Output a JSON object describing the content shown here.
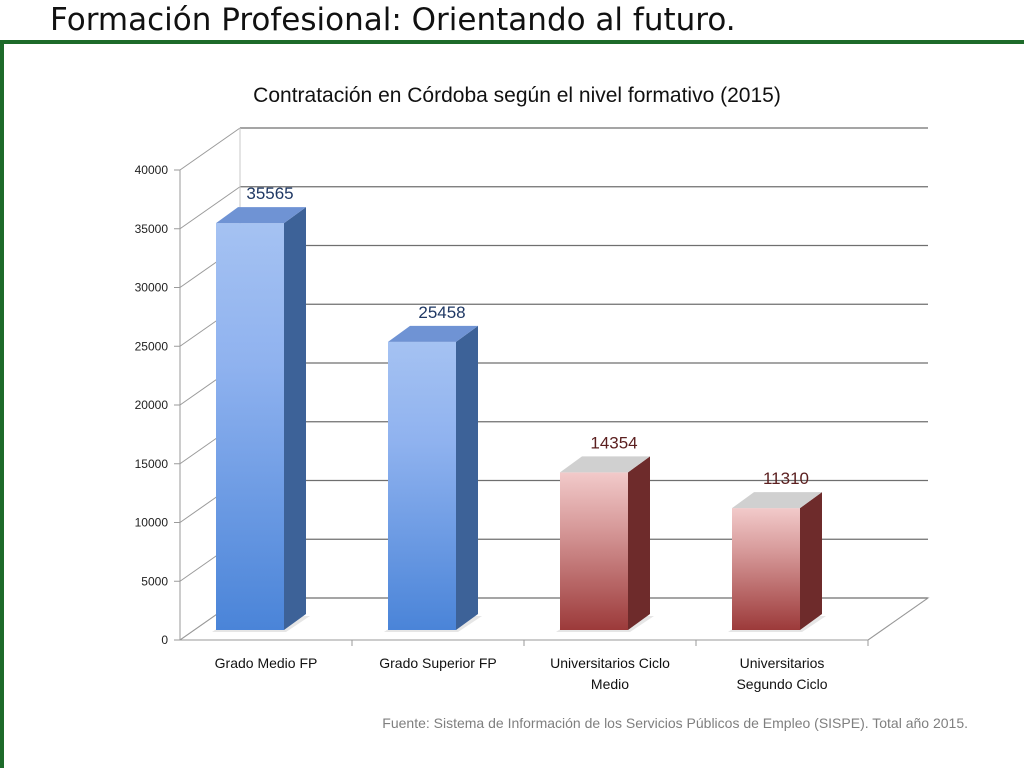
{
  "page": {
    "title": "Formación Profesional: Orientando al futuro.",
    "accent_color": "#1d6b2a",
    "source_note": "Fuente: Sistema de Información de los Servicios Públicos de Empleo (SISPE). Total año 2015."
  },
  "chart_data": {
    "type": "bar",
    "style": "3d-column",
    "title": "Contratación en Córdoba según el nivel formativo (2015)",
    "categories": [
      [
        "Grado Medio FP"
      ],
      [
        "Grado Superior FP"
      ],
      [
        "Universitarios Ciclo",
        "Medio"
      ],
      [
        "Universitarios",
        "Segundo Ciclo"
      ]
    ],
    "values": [
      35565,
      25458,
      14354,
      11310
    ],
    "data_labels": [
      "35565",
      "25458",
      "14354",
      "11310"
    ],
    "bar_colors": [
      "blue",
      "blue",
      "red",
      "red"
    ],
    "palette": {
      "blue": {
        "top": "#a5c2f2",
        "mid": "#8fb2ef",
        "bottom": "#4a84d8",
        "side": "#3d6298",
        "cap": "#6f93d4",
        "label": "#1f3864"
      },
      "red": {
        "top": "#f2caca",
        "mid": "#d79a9a",
        "bottom": "#9c3a3a",
        "side": "#6e2b2b",
        "cap": "#d0d0d0",
        "label": "#5b1f1f"
      }
    },
    "ylim": [
      0,
      40000
    ],
    "yticks": [
      0,
      5000,
      10000,
      15000,
      20000,
      25000,
      30000,
      35000,
      40000
    ],
    "grid": true,
    "xlabel": "",
    "ylabel": ""
  }
}
